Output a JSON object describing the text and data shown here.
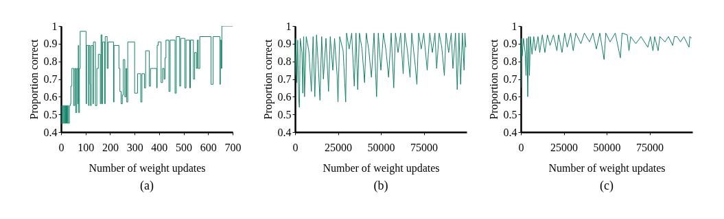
{
  "chart_data": [
    {
      "type": "step",
      "title": "(a)",
      "xlabel": "Number of weight updates",
      "ylabel": "Proportion correct",
      "xlim": [
        0,
        700
      ],
      "xticks": [
        0,
        100,
        200,
        300,
        400,
        500,
        600,
        700
      ],
      "ylim": [
        0.4,
        1
      ],
      "yticks": [
        0.4,
        0.5,
        0.6,
        0.7,
        0.8,
        0.9,
        1
      ],
      "grid": false,
      "series": [
        {
          "color": "#138066",
          "x": [
            0,
            3,
            6,
            9,
            12,
            15,
            18,
            21,
            24,
            27,
            30,
            34,
            38,
            40,
            44,
            52,
            56,
            60,
            64,
            68,
            70,
            72,
            75,
            78,
            102,
            104,
            112,
            114,
            118,
            120,
            123,
            130,
            132,
            140,
            146,
            152,
            160,
            163,
            167,
            170,
            178,
            180,
            188,
            192,
            214,
            216,
            236,
            240,
            245,
            250,
            254,
            260,
            265,
            268,
            272,
            300,
            312,
            325,
            330,
            340,
            345,
            360,
            365,
            390,
            392,
            396,
            408,
            414,
            420,
            424,
            428,
            440,
            445,
            465,
            470,
            484,
            488,
            505,
            510,
            525,
            528,
            540,
            545,
            552,
            556,
            560,
            566,
            612,
            620,
            648,
            650,
            654,
            656,
            700
          ],
          "values": [
            0.45,
            0.55,
            0.45,
            0.55,
            0.45,
            0.55,
            0.45,
            0.55,
            0.45,
            0.55,
            0.45,
            0.55,
            0.56,
            0.66,
            0.76,
            0.55,
            0.76,
            0.51,
            0.76,
            0.56,
            0.89,
            0.51,
            0.76,
            0.97,
            0.56,
            0.89,
            0.55,
            0.89,
            0.67,
            0.55,
            0.89,
            0.56,
            0.91,
            0.55,
            0.76,
            0.84,
            0.56,
            0.95,
            0.56,
            0.91,
            0.56,
            0.94,
            0.76,
            0.91,
            0.57,
            0.89,
            0.76,
            0.63,
            0.56,
            0.61,
            0.81,
            0.6,
            0.76,
            0.57,
            0.91,
            0.62,
            0.73,
            0.57,
            0.73,
            0.65,
            0.86,
            0.66,
            0.76,
            0.65,
            0.89,
            0.91,
            0.68,
            0.76,
            0.7,
            0.82,
            0.92,
            0.63,
            0.92,
            0.62,
            0.94,
            0.66,
            0.93,
            0.65,
            0.92,
            0.65,
            0.92,
            0.7,
            0.85,
            0.76,
            0.92,
            0.76,
            0.94,
            0.67,
            0.94,
            0.67,
            0.92,
            0.76,
            1.0,
            1.0
          ]
        }
      ]
    },
    {
      "type": "line",
      "title": "(b)",
      "xlabel": "Number of weight updates",
      "ylabel": "Proportion correct",
      "xlim": [
        0,
        100000
      ],
      "xticks": [
        0,
        25000,
        50000,
        75000
      ],
      "ylim": [
        0.4,
        1
      ],
      "yticks": [
        0.4,
        0.5,
        0.6,
        0.7,
        0.8,
        0.9,
        1
      ],
      "grid": false,
      "series": [
        {
          "color": "#138066",
          "x": [
            0,
            500,
            1000,
            1500,
            2000,
            2500,
            3000,
            4000,
            4500,
            5000,
            5500,
            6500,
            8000,
            9500,
            10500,
            11500,
            12500,
            13500,
            14500,
            15500,
            16500,
            18000,
            19500,
            20500,
            22000,
            23000,
            24500,
            25000,
            26000,
            28000,
            29500,
            30000,
            31500,
            33000,
            34500,
            35500,
            36500,
            37500,
            39000,
            40500,
            41500,
            43000,
            44500,
            46000,
            47500,
            48500,
            50000,
            51500,
            53000,
            54500,
            56000,
            57500,
            58500,
            60000,
            61500,
            63000,
            64000,
            65500,
            67000,
            68000,
            70000,
            71000,
            72000,
            73500,
            75000,
            77000,
            78500,
            80000,
            81500,
            82500,
            84000,
            85500,
            87000,
            88000,
            89500,
            91000,
            92000,
            93500,
            94500,
            95500,
            96500,
            97500,
            98500,
            99000,
            99500
          ],
          "values": [
            0.72,
            0.93,
            0.68,
            0.92,
            0.6,
            0.54,
            0.93,
            0.85,
            0.62,
            0.94,
            0.6,
            0.94,
            0.86,
            0.63,
            0.94,
            0.6,
            0.95,
            0.78,
            0.58,
            0.94,
            0.7,
            0.93,
            0.63,
            0.94,
            0.75,
            0.93,
            0.72,
            0.57,
            0.94,
            0.86,
            0.57,
            0.96,
            0.87,
            0.96,
            0.66,
            0.96,
            0.64,
            0.96,
            0.87,
            0.68,
            0.96,
            0.86,
            0.71,
            0.96,
            0.6,
            0.96,
            0.75,
            0.96,
            0.86,
            0.71,
            0.96,
            0.65,
            0.96,
            0.85,
            0.96,
            0.73,
            0.96,
            0.86,
            0.71,
            0.96,
            0.78,
            0.67,
            0.96,
            0.87,
            0.96,
            0.75,
            0.96,
            0.85,
            0.96,
            0.76,
            0.96,
            0.88,
            0.72,
            0.96,
            0.85,
            0.96,
            0.76,
            0.96,
            0.64,
            0.96,
            0.67,
            0.96,
            0.75,
            0.96,
            0.88
          ]
        }
      ]
    },
    {
      "type": "line",
      "title": "(c)",
      "xlabel": "Number of weight updates",
      "ylabel": "Proportion correct",
      "xlim": [
        0,
        100000
      ],
      "xticks": [
        0,
        25000,
        50000,
        75000
      ],
      "ylim": [
        0.4,
        1
      ],
      "yticks": [
        0.4,
        0.5,
        0.6,
        0.7,
        0.8,
        0.9,
        1
      ],
      "grid": false,
      "series": [
        {
          "color": "#138066",
          "x": [
            0,
            300,
            800,
            1500,
            2500,
            3000,
            3500,
            4000,
            4500,
            5000,
            5500,
            6500,
            7500,
            8500,
            10000,
            11000,
            12500,
            14000,
            15500,
            17000,
            19000,
            21000,
            22000,
            24000,
            25500,
            27000,
            29000,
            30500,
            32000,
            35000,
            37000,
            40000,
            42000,
            44000,
            46000,
            48500,
            49500,
            52000,
            55000,
            58000,
            59000,
            62000,
            63000,
            64000,
            67000,
            70000,
            74000,
            75500,
            77000,
            78000,
            80000,
            81000,
            84000,
            86000,
            88500,
            89500,
            91000,
            93000,
            95000,
            98000,
            98500,
            99500
          ],
          "values": [
            0.65,
            0.93,
            0.83,
            0.93,
            0.85,
            0.72,
            0.93,
            0.6,
            0.94,
            0.72,
            0.94,
            0.84,
            0.94,
            0.86,
            0.94,
            0.85,
            0.95,
            0.85,
            0.95,
            0.89,
            0.95,
            0.86,
            0.95,
            0.85,
            0.96,
            0.88,
            0.96,
            0.86,
            0.96,
            0.9,
            0.96,
            0.91,
            0.96,
            0.87,
            0.96,
            0.81,
            0.96,
            0.91,
            0.96,
            0.82,
            0.96,
            0.95,
            0.86,
            0.94,
            0.9,
            0.94,
            0.88,
            0.94,
            0.86,
            0.94,
            0.86,
            0.94,
            0.91,
            0.94,
            0.89,
            0.94,
            0.94,
            0.91,
            0.94,
            0.88,
            0.94,
            0.93
          ]
        }
      ]
    }
  ]
}
